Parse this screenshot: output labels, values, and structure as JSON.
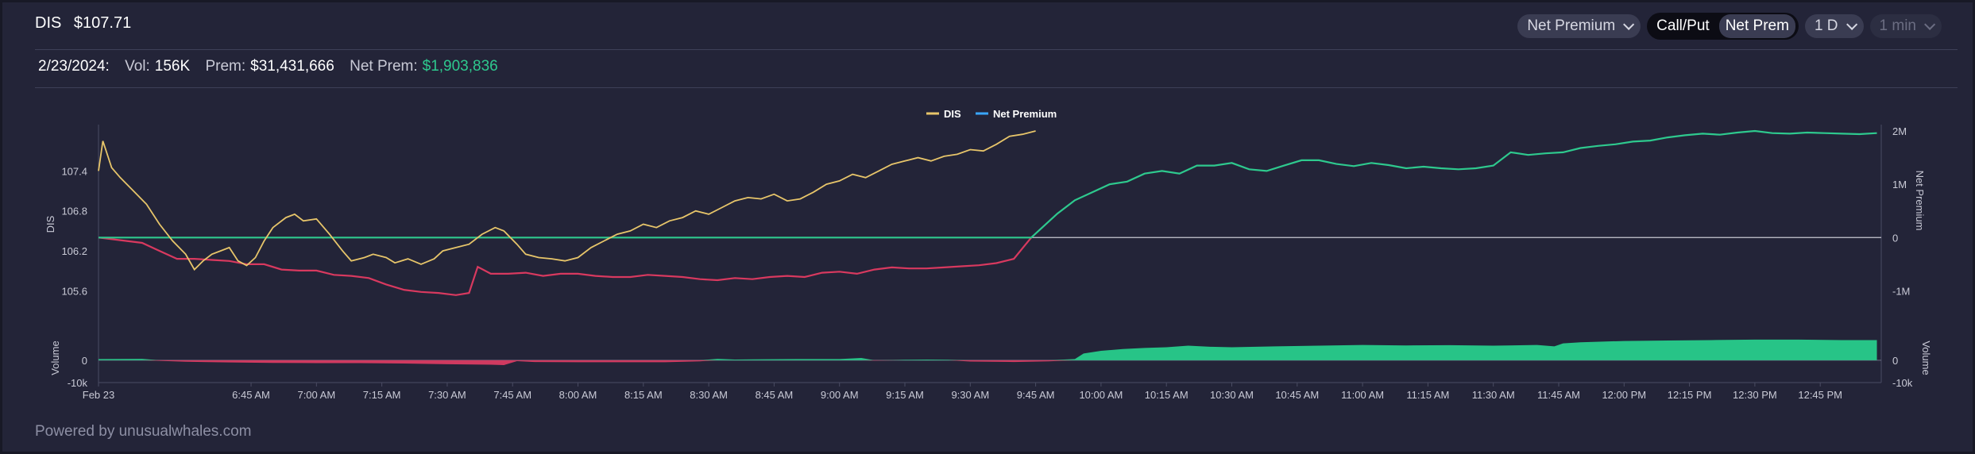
{
  "header": {
    "ticker": "DIS",
    "price": "$107.71",
    "metric_dropdown": "Net Premium",
    "toggle_options": [
      "Call/Put",
      "Net Prem"
    ],
    "active_toggle": "Net Prem",
    "range_dropdown": "1 D",
    "interval_dropdown": "1 min"
  },
  "stats": {
    "date": "2/23/2024:",
    "vol_label": "Vol:",
    "vol_value": "156K",
    "prem_label": "Prem:",
    "prem_value": "$31,431,666",
    "net_prem_label": "Net Prem:",
    "net_prem_value": "$1,903,836"
  },
  "footer": {
    "powered_by": "Powered by unusualwhales.com"
  },
  "colors": {
    "price": "#e7c56a",
    "net_pos": "#2ec98e",
    "net_neg": "#d8395f",
    "vol_pos": "#27c487",
    "vol_neg": "#cf3a60",
    "grid": "#c8c9d2"
  },
  "chart_data": {
    "type": "line",
    "title": "",
    "legend": [
      "DIS",
      "Net Premium"
    ],
    "legend_position": "top-center",
    "x_range_minutes": [
      370,
      779
    ],
    "x_ticks": [
      {
        "t": 370,
        "label": "Feb 23"
      },
      {
        "t": 405,
        "label": "6:45 AM"
      },
      {
        "t": 420,
        "label": "7:00 AM"
      },
      {
        "t": 435,
        "label": "7:15 AM"
      },
      {
        "t": 450,
        "label": "7:30 AM"
      },
      {
        "t": 465,
        "label": "7:45 AM"
      },
      {
        "t": 480,
        "label": "8:00 AM"
      },
      {
        "t": 495,
        "label": "8:15 AM"
      },
      {
        "t": 510,
        "label": "8:30 AM"
      },
      {
        "t": 525,
        "label": "8:45 AM"
      },
      {
        "t": 540,
        "label": "9:00 AM"
      },
      {
        "t": 555,
        "label": "9:15 AM"
      },
      {
        "t": 570,
        "label": "9:30 AM"
      },
      {
        "t": 585,
        "label": "9:45 AM"
      },
      {
        "t": 600,
        "label": "10:00 AM"
      },
      {
        "t": 615,
        "label": "10:15 AM"
      },
      {
        "t": 630,
        "label": "10:30 AM"
      },
      {
        "t": 645,
        "label": "10:45 AM"
      },
      {
        "t": 660,
        "label": "11:00 AM"
      },
      {
        "t": 675,
        "label": "11:15 AM"
      },
      {
        "t": 690,
        "label": "11:30 AM"
      },
      {
        "t": 705,
        "label": "11:45 AM"
      },
      {
        "t": 720,
        "label": "12:00 PM"
      },
      {
        "t": 735,
        "label": "12:15 PM"
      },
      {
        "t": 750,
        "label": "12:30 PM"
      },
      {
        "t": 765,
        "label": "12:45 PM"
      }
    ],
    "price_axis": {
      "label": "DIS",
      "range": [
        105.2,
        108.0
      ],
      "ticks": [
        "105.6",
        "106.2",
        "106.8",
        "107.4"
      ]
    },
    "premium_axis": {
      "label": "Net Premium",
      "range": [
        -1.5,
        2.0
      ],
      "unit": "M",
      "ticks": [
        {
          "v": -1,
          "label": "-1M"
        },
        {
          "v": 0,
          "label": "0"
        },
        {
          "v": 1,
          "label": "1M"
        },
        {
          "v": 2,
          "label": "2M"
        }
      ]
    },
    "volume_axis": {
      "label": "Volume",
      "range": [
        -10,
        12
      ],
      "unit": "k",
      "ticks": [
        {
          "v": -10,
          "label": "-10k"
        },
        {
          "v": 0,
          "label": "0"
        }
      ]
    },
    "volume_right_axis": {
      "label": "Volume",
      "ticks": [
        {
          "v": -10,
          "label": "-10k"
        },
        {
          "v": 0,
          "label": "0"
        }
      ]
    },
    "series": [
      {
        "name": "DIS",
        "axis": "price",
        "points": [
          [
            370,
            107.4
          ],
          [
            371,
            107.85
          ],
          [
            373,
            107.45
          ],
          [
            375,
            107.3
          ],
          [
            378,
            107.1
          ],
          [
            381,
            106.9
          ],
          [
            384,
            106.6
          ],
          [
            387,
            106.35
          ],
          [
            390,
            106.15
          ],
          [
            392,
            105.92
          ],
          [
            394,
            106.05
          ],
          [
            396,
            106.15
          ],
          [
            398,
            106.2
          ],
          [
            400,
            106.25
          ],
          [
            402,
            106.05
          ],
          [
            404,
            105.98
          ],
          [
            406,
            106.1
          ],
          [
            408,
            106.35
          ],
          [
            410,
            106.55
          ],
          [
            413,
            106.7
          ],
          [
            415,
            106.75
          ],
          [
            417,
            106.65
          ],
          [
            420,
            106.68
          ],
          [
            423,
            106.45
          ],
          [
            426,
            106.2
          ],
          [
            428,
            106.05
          ],
          [
            431,
            106.1
          ],
          [
            433,
            106.15
          ],
          [
            436,
            106.1
          ],
          [
            438,
            106.02
          ],
          [
            441,
            106.08
          ],
          [
            444,
            106.0
          ],
          [
            447,
            106.08
          ],
          [
            449,
            106.2
          ],
          [
            452,
            106.25
          ],
          [
            455,
            106.3
          ],
          [
            458,
            106.45
          ],
          [
            461,
            106.55
          ],
          [
            463,
            106.5
          ],
          [
            466,
            106.3
          ],
          [
            468,
            106.15
          ],
          [
            471,
            106.1
          ],
          [
            474,
            106.08
          ],
          [
            477,
            106.05
          ],
          [
            480,
            106.1
          ],
          [
            483,
            106.25
          ],
          [
            486,
            106.35
          ],
          [
            489,
            106.45
          ],
          [
            492,
            106.5
          ],
          [
            495,
            106.6
          ],
          [
            498,
            106.55
          ],
          [
            501,
            106.65
          ],
          [
            504,
            106.7
          ],
          [
            507,
            106.8
          ],
          [
            510,
            106.75
          ],
          [
            513,
            106.85
          ],
          [
            516,
            106.95
          ],
          [
            519,
            107.0
          ],
          [
            522,
            106.98
          ],
          [
            525,
            107.05
          ],
          [
            528,
            106.95
          ],
          [
            531,
            106.98
          ],
          [
            534,
            107.08
          ],
          [
            537,
            107.2
          ],
          [
            540,
            107.25
          ],
          [
            543,
            107.35
          ],
          [
            546,
            107.3
          ],
          [
            549,
            107.4
          ],
          [
            552,
            107.5
          ],
          [
            555,
            107.55
          ],
          [
            558,
            107.6
          ],
          [
            561,
            107.55
          ],
          [
            564,
            107.62
          ],
          [
            567,
            107.65
          ],
          [
            570,
            107.72
          ],
          [
            573,
            107.7
          ],
          [
            576,
            107.8
          ],
          [
            579,
            107.92
          ],
          [
            582,
            107.95
          ],
          [
            585,
            108.0
          ]
        ]
      },
      {
        "name": "Net Premium",
        "axis": "premium",
        "positive_color": "#2ec98e",
        "negative_color": "#d8395f",
        "points": [
          [
            370,
            0.0
          ],
          [
            375,
            -0.05
          ],
          [
            380,
            -0.1
          ],
          [
            384,
            -0.25
          ],
          [
            388,
            -0.4
          ],
          [
            392,
            -0.4
          ],
          [
            396,
            -0.42
          ],
          [
            400,
            -0.44
          ],
          [
            404,
            -0.5
          ],
          [
            408,
            -0.5
          ],
          [
            412,
            -0.6
          ],
          [
            416,
            -0.62
          ],
          [
            420,
            -0.62
          ],
          [
            424,
            -0.7
          ],
          [
            428,
            -0.72
          ],
          [
            432,
            -0.76
          ],
          [
            436,
            -0.88
          ],
          [
            440,
            -0.98
          ],
          [
            444,
            -1.02
          ],
          [
            448,
            -1.04
          ],
          [
            452,
            -1.08
          ],
          [
            455,
            -1.04
          ],
          [
            457,
            -0.55
          ],
          [
            460,
            -0.68
          ],
          [
            464,
            -0.68
          ],
          [
            468,
            -0.66
          ],
          [
            472,
            -0.72
          ],
          [
            476,
            -0.68
          ],
          [
            480,
            -0.68
          ],
          [
            484,
            -0.72
          ],
          [
            488,
            -0.74
          ],
          [
            492,
            -0.74
          ],
          [
            496,
            -0.7
          ],
          [
            500,
            -0.72
          ],
          [
            504,
            -0.74
          ],
          [
            508,
            -0.78
          ],
          [
            512,
            -0.8
          ],
          [
            516,
            -0.76
          ],
          [
            520,
            -0.78
          ],
          [
            524,
            -0.74
          ],
          [
            528,
            -0.72
          ],
          [
            532,
            -0.74
          ],
          [
            536,
            -0.66
          ],
          [
            540,
            -0.64
          ],
          [
            544,
            -0.68
          ],
          [
            548,
            -0.6
          ],
          [
            552,
            -0.56
          ],
          [
            556,
            -0.58
          ],
          [
            560,
            -0.58
          ],
          [
            564,
            -0.56
          ],
          [
            568,
            -0.54
          ],
          [
            572,
            -0.52
          ],
          [
            576,
            -0.48
          ],
          [
            580,
            -0.4
          ],
          [
            582,
            -0.2
          ],
          [
            584,
            0.0
          ],
          [
            586,
            0.15
          ],
          [
            590,
            0.45
          ],
          [
            594,
            0.7
          ],
          [
            598,
            0.85
          ],
          [
            602,
            1.0
          ],
          [
            606,
            1.05
          ],
          [
            610,
            1.2
          ],
          [
            614,
            1.25
          ],
          [
            618,
            1.2
          ],
          [
            622,
            1.35
          ],
          [
            626,
            1.35
          ],
          [
            630,
            1.4
          ],
          [
            634,
            1.28
          ],
          [
            638,
            1.25
          ],
          [
            642,
            1.35
          ],
          [
            646,
            1.45
          ],
          [
            650,
            1.45
          ],
          [
            654,
            1.38
          ],
          [
            658,
            1.34
          ],
          [
            662,
            1.4
          ],
          [
            666,
            1.36
          ],
          [
            670,
            1.3
          ],
          [
            674,
            1.33
          ],
          [
            678,
            1.3
          ],
          [
            682,
            1.28
          ],
          [
            686,
            1.3
          ],
          [
            690,
            1.35
          ],
          [
            694,
            1.6
          ],
          [
            698,
            1.55
          ],
          [
            702,
            1.58
          ],
          [
            706,
            1.6
          ],
          [
            710,
            1.68
          ],
          [
            714,
            1.72
          ],
          [
            718,
            1.75
          ],
          [
            722,
            1.8
          ],
          [
            726,
            1.82
          ],
          [
            730,
            1.88
          ],
          [
            734,
            1.92
          ],
          [
            738,
            1.95
          ],
          [
            742,
            1.93
          ],
          [
            746,
            1.97
          ],
          [
            750,
            2.0
          ],
          [
            754,
            1.96
          ],
          [
            758,
            1.95
          ],
          [
            762,
            1.97
          ],
          [
            766,
            1.96
          ],
          [
            770,
            1.95
          ],
          [
            774,
            1.94
          ],
          [
            778,
            1.96
          ]
        ]
      },
      {
        "name": "Volume",
        "axis": "volume",
        "positive_color": "#27c487",
        "negative_color": "#cf3a60",
        "points": [
          [
            370,
            0.5
          ],
          [
            380,
            0.6
          ],
          [
            384,
            -0.3
          ],
          [
            390,
            -0.7
          ],
          [
            400,
            -1.0
          ],
          [
            410,
            -1.2
          ],
          [
            420,
            -1.3
          ],
          [
            430,
            -1.3
          ],
          [
            440,
            -1.5
          ],
          [
            450,
            -1.8
          ],
          [
            460,
            -2.0
          ],
          [
            463,
            -2.2
          ],
          [
            466,
            -0.4
          ],
          [
            470,
            -0.8
          ],
          [
            480,
            -0.9
          ],
          [
            490,
            -0.9
          ],
          [
            500,
            -0.9
          ],
          [
            508,
            -0.5
          ],
          [
            512,
            0.6
          ],
          [
            516,
            0.3
          ],
          [
            520,
            0.4
          ],
          [
            530,
            0.5
          ],
          [
            540,
            0.5
          ],
          [
            545,
            1.0
          ],
          [
            548,
            -0.2
          ],
          [
            555,
            0.2
          ],
          [
            560,
            0.3
          ],
          [
            565,
            0.2
          ],
          [
            570,
            -0.6
          ],
          [
            580,
            -0.8
          ],
          [
            588,
            -0.5
          ],
          [
            594,
            0.5
          ],
          [
            596,
            3.0
          ],
          [
            600,
            4.2
          ],
          [
            605,
            5.0
          ],
          [
            610,
            5.5
          ],
          [
            615,
            5.8
          ],
          [
            620,
            6.5
          ],
          [
            625,
            6.0
          ],
          [
            630,
            5.8
          ],
          [
            640,
            6.2
          ],
          [
            650,
            6.5
          ],
          [
            660,
            6.8
          ],
          [
            670,
            6.6
          ],
          [
            680,
            6.7
          ],
          [
            690,
            6.5
          ],
          [
            700,
            6.8
          ],
          [
            704,
            6.2
          ],
          [
            706,
            7.5
          ],
          [
            710,
            8.0
          ],
          [
            720,
            8.6
          ],
          [
            730,
            8.8
          ],
          [
            740,
            9.0
          ],
          [
            750,
            9.2
          ],
          [
            760,
            9.2
          ],
          [
            770,
            9.0
          ],
          [
            778,
            9.0
          ]
        ]
      }
    ]
  }
}
